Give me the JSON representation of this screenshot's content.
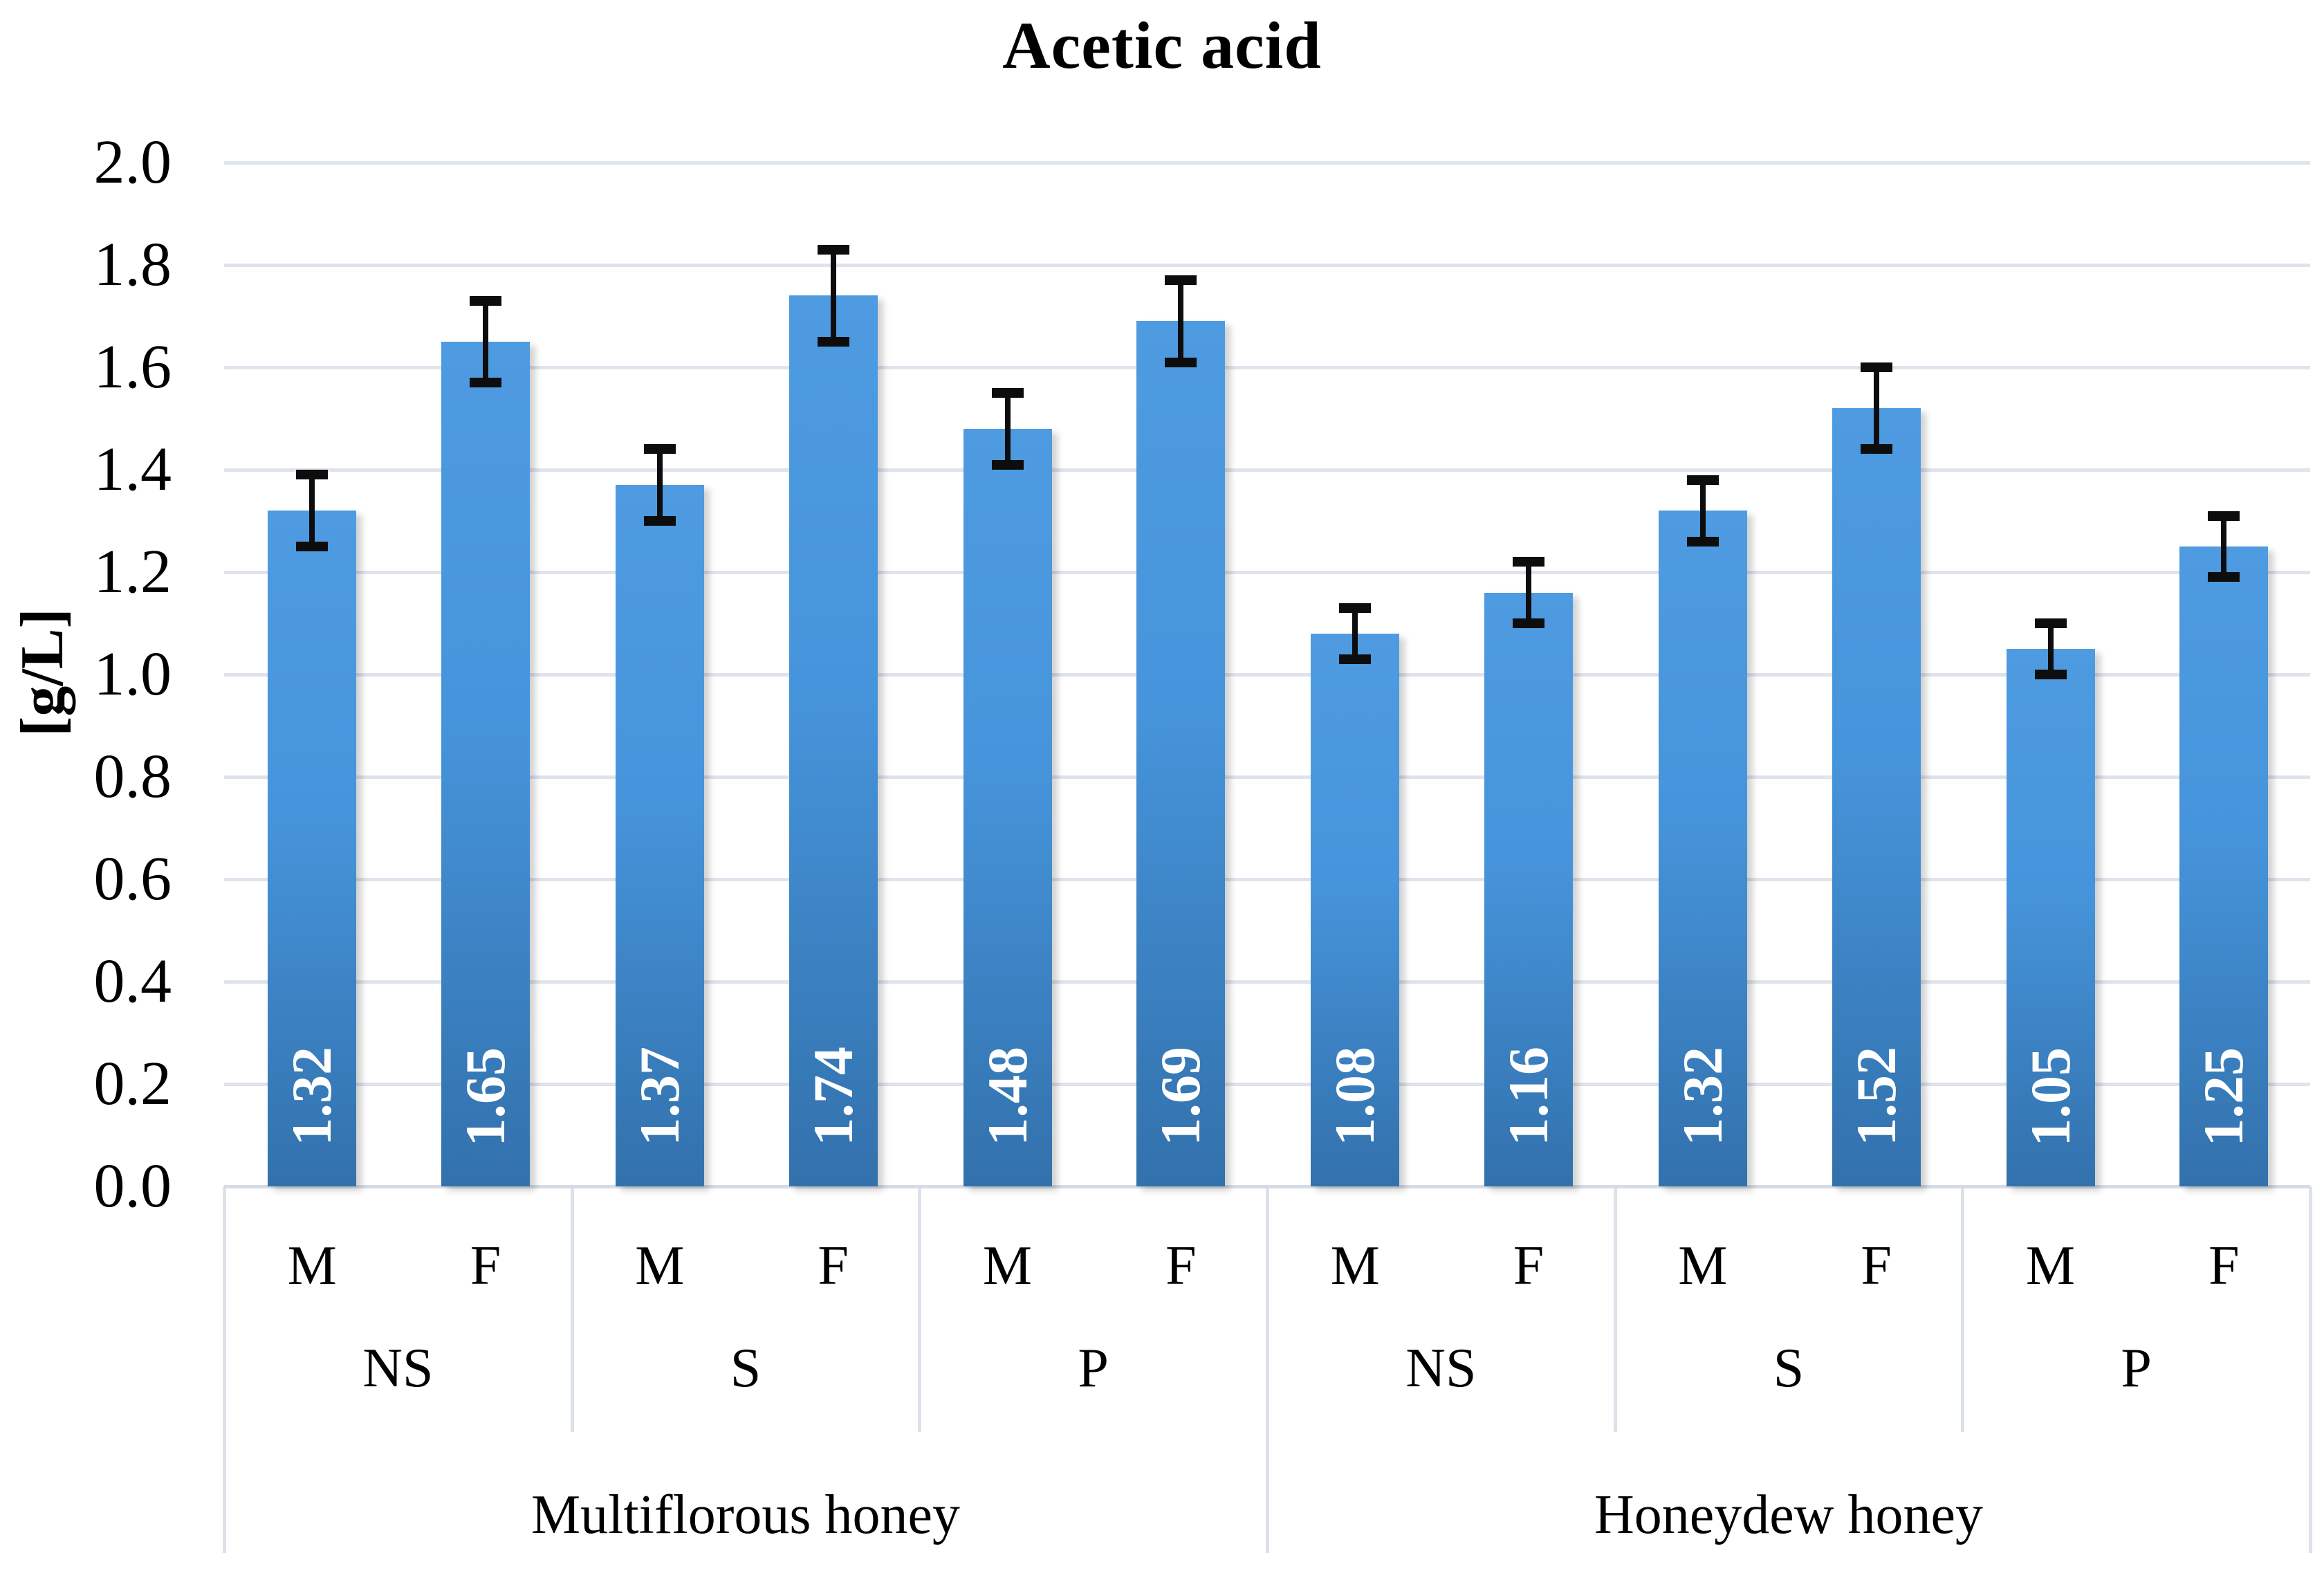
{
  "chart_data": {
    "type": "bar",
    "title": "Acetic acid",
    "ylabel": "[g/L]",
    "ylim": [
      0.0,
      2.0
    ],
    "ytick_labels": [
      "0.0",
      "0.2",
      "0.4",
      "0.6",
      "0.8",
      "1.0",
      "1.2",
      "1.4",
      "1.6",
      "1.8",
      "2.0"
    ],
    "grid": true,
    "legend": "none",
    "bar_color_top": "#4E9BE1",
    "bar_color_bottom": "#3271AC",
    "gridline_color": "#DEE3ED",
    "error_bar_color": "#0D0D0D",
    "value_label_color": "#FFFFFF",
    "honey_types": [
      "Multiflorous honey",
      "Honeydew honey"
    ],
    "sites": [
      "NS",
      "S",
      "P"
    ],
    "sexes": [
      "M",
      "F"
    ],
    "points": [
      {
        "honey": "Multiflorous honey",
        "site": "NS",
        "sex": "M",
        "value": 1.32,
        "label": "1.32",
        "error": 0.07
      },
      {
        "honey": "Multiflorous honey",
        "site": "NS",
        "sex": "F",
        "value": 1.65,
        "label": "1.65",
        "error": 0.08
      },
      {
        "honey": "Multiflorous honey",
        "site": "S",
        "sex": "M",
        "value": 1.37,
        "label": "1.37",
        "error": 0.07
      },
      {
        "honey": "Multiflorous honey",
        "site": "S",
        "sex": "F",
        "value": 1.74,
        "label": "1.74",
        "error": 0.09
      },
      {
        "honey": "Multiflorous honey",
        "site": "P",
        "sex": "M",
        "value": 1.48,
        "label": "1.48",
        "error": 0.07
      },
      {
        "honey": "Multiflorous honey",
        "site": "P",
        "sex": "F",
        "value": 1.69,
        "label": "1.69",
        "error": 0.08
      },
      {
        "honey": "Honeydew honey",
        "site": "NS",
        "sex": "M",
        "value": 1.08,
        "label": "1.08",
        "error": 0.05
      },
      {
        "honey": "Honeydew honey",
        "site": "NS",
        "sex": "F",
        "value": 1.16,
        "label": "1.16",
        "error": 0.06
      },
      {
        "honey": "Honeydew honey",
        "site": "S",
        "sex": "M",
        "value": 1.32,
        "label": "1.32",
        "error": 0.06
      },
      {
        "honey": "Honeydew honey",
        "site": "S",
        "sex": "F",
        "value": 1.52,
        "label": "1.52",
        "error": 0.08
      },
      {
        "honey": "Honeydew honey",
        "site": "P",
        "sex": "M",
        "value": 1.05,
        "label": "1.05",
        "error": 0.05
      },
      {
        "honey": "Honeydew honey",
        "site": "P",
        "sex": "F",
        "value": 1.25,
        "label": "1.25",
        "error": 0.06
      }
    ]
  }
}
